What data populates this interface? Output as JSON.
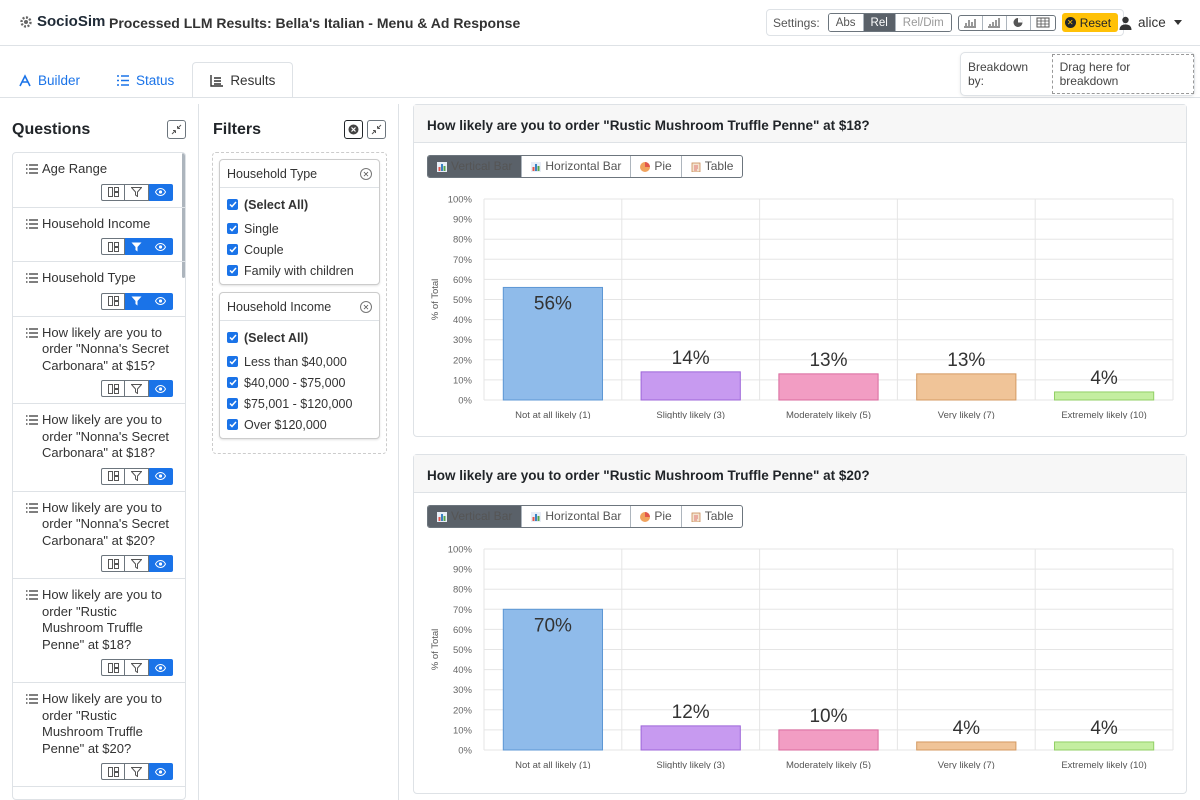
{
  "header": {
    "logo": "SocioSim",
    "title": "Processed LLM Results: Bella's Italian - Menu & Ad Response",
    "settings_label": "Settings:",
    "mode_options": [
      "Abs",
      "Rel",
      "Rel/Dim"
    ],
    "active_mode": "Rel",
    "chart_icons": [
      "vertical-bar-icon",
      "horizontal-bar-icon",
      "pie-icon",
      "table-icon"
    ],
    "reset_label": "Reset",
    "user": "alice"
  },
  "tabs": [
    {
      "label": "Builder",
      "icon": "builder-icon"
    },
    {
      "label": "Status",
      "icon": "list-check-icon"
    },
    {
      "label": "Results",
      "icon": "results-icon",
      "active": true
    }
  ],
  "breakdown": {
    "label": "Breakdown by:",
    "drop_text": "Drag here for breakdown"
  },
  "questions": {
    "title": "Questions",
    "items": [
      {
        "text": "Age Range",
        "filter_active": false,
        "visible": true
      },
      {
        "text": "Household Income",
        "filter_active": true,
        "visible": true
      },
      {
        "text": "Household Type",
        "filter_active": true,
        "visible": true
      },
      {
        "text": "How likely are you to order \"Nonna's Secret Carbonara\" at $15?",
        "filter_active": false,
        "visible": true
      },
      {
        "text": "How likely are you to order \"Nonna's Secret Carbonara\" at $18?",
        "filter_active": false,
        "visible": true
      },
      {
        "text": "How likely are you to order \"Nonna's Secret Carbonara\" at $20?",
        "filter_active": false,
        "visible": true
      },
      {
        "text": "How likely are you to order \"Rustic Mushroom Truffle Penne\" at $18?",
        "filter_active": false,
        "visible": true
      },
      {
        "text": "How likely are you to order \"Rustic Mushroom Truffle Penne\" at $20?",
        "filter_active": false,
        "visible": true
      }
    ]
  },
  "filters": {
    "title": "Filters",
    "groups": [
      {
        "name": "Household Type",
        "select_all": "(Select All)",
        "options": [
          "Single",
          "Couple",
          "Family with children"
        ]
      },
      {
        "name": "Household Income",
        "select_all": "(Select All)",
        "options": [
          "Less than $40,000",
          "$40,000 - $75,000",
          "$75,001 - $120,000",
          "Over $120,000"
        ]
      }
    ]
  },
  "chart_type_options": [
    "Vertical Bar",
    "Horizontal Bar",
    "Pie",
    "Table"
  ],
  "colors": {
    "accent": "#1a73e8",
    "reset": "#ffc107",
    "bars": [
      "#8fbbea",
      "#c79af0",
      "#f29dc3",
      "#f0c498",
      "#c4eea0"
    ],
    "bar_strokes": [
      "#5d97d4",
      "#9d66d8",
      "#d96a9e",
      "#d49a62",
      "#92cf66"
    ]
  },
  "chart_data": [
    {
      "type": "bar",
      "title": "How likely are you to order \"Rustic Mushroom Truffle Penne\" at $18?",
      "categories": [
        "Not at all likely (1)",
        "Slightly likely (3)",
        "Moderately likely (5)",
        "Very likely (7)",
        "Extremely likely (10)"
      ],
      "values": [
        56,
        14,
        13,
        13,
        4
      ],
      "data_labels": [
        "56%",
        "14%",
        "13%",
        "13%",
        "4%"
      ],
      "ylabel": "% of Total",
      "ylim": [
        0,
        100
      ],
      "yticks": [
        "0%",
        "10%",
        "20%",
        "30%",
        "40%",
        "50%",
        "60%",
        "70%",
        "80%",
        "90%",
        "100%"
      ],
      "grid": true
    },
    {
      "type": "bar",
      "title": "How likely are you to order \"Rustic Mushroom Truffle Penne\" at $20?",
      "categories": [
        "Not at all likely (1)",
        "Slightly likely (3)",
        "Moderately likely (5)",
        "Very likely (7)",
        "Extremely likely (10)"
      ],
      "values": [
        70,
        12,
        10,
        4,
        4
      ],
      "data_labels": [
        "70%",
        "12%",
        "10%",
        "4%",
        "4%"
      ],
      "ylabel": "% of Total",
      "ylim": [
        0,
        100
      ],
      "yticks": [
        "0%",
        "10%",
        "20%",
        "30%",
        "40%",
        "50%",
        "60%",
        "70%",
        "80%",
        "90%",
        "100%"
      ],
      "grid": true
    }
  ]
}
